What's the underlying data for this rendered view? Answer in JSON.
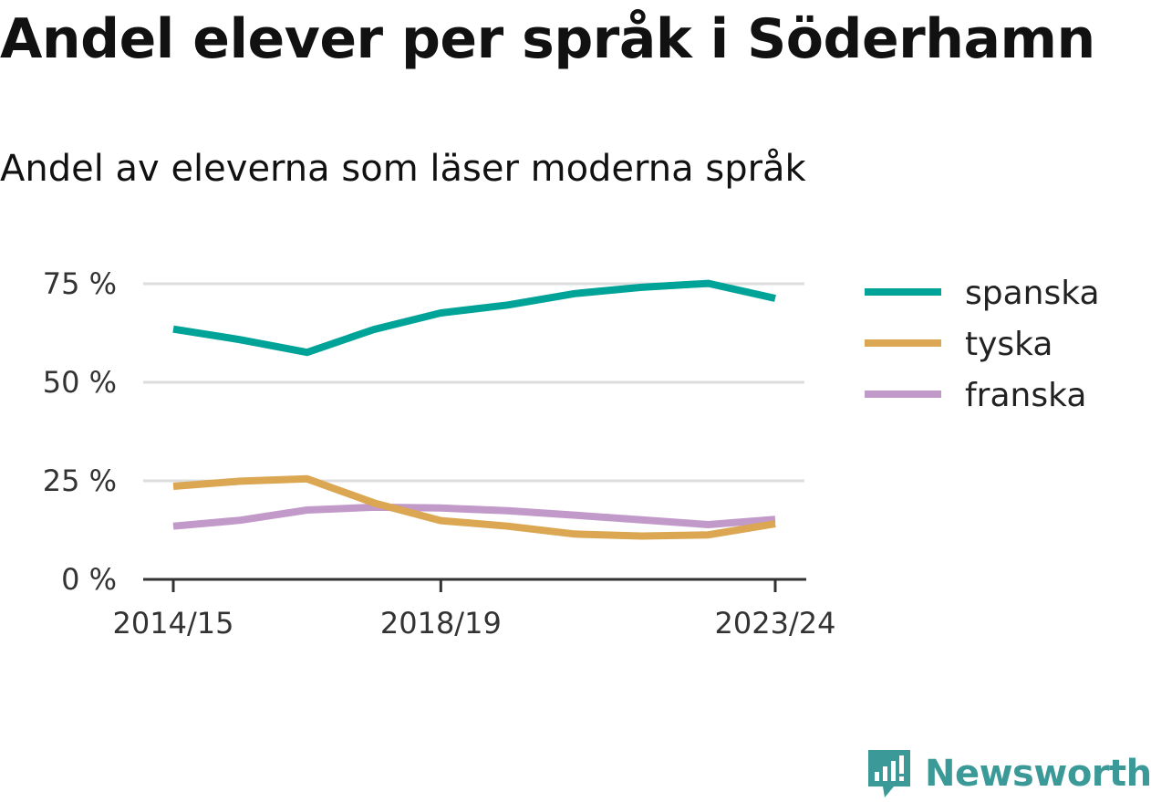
{
  "title": "Andel elever per språk i Söderhamn",
  "subtitle": "Andel av eleverna som läser moderna språk",
  "brand": {
    "name": "Newsworthy",
    "color": "#3b9a98"
  },
  "chart_data": {
    "type": "line",
    "title": "Andel elever per språk i Söderhamn",
    "subtitle": "Andel av eleverna som läser moderna språk",
    "xlabel": "",
    "ylabel": "",
    "x": [
      "2014/15",
      "2015/16",
      "2016/17",
      "2017/18",
      "2018/19",
      "2019/20",
      "2020/21",
      "2021/22",
      "2022/23",
      "2023/24"
    ],
    "x_tick_labels": [
      "2014/15",
      "2018/19",
      "2023/24"
    ],
    "y_ticks": [
      0,
      25,
      50,
      75
    ],
    "y_tick_labels": [
      "0 %",
      "25 %",
      "50 %",
      "75 %"
    ],
    "ylim": [
      0,
      80
    ],
    "grid": true,
    "legend_position": "right",
    "series": [
      {
        "name": "spanska",
        "color": "#00a397",
        "values": [
          63.5,
          60.8,
          57.6,
          63.4,
          67.6,
          69.6,
          72.5,
          74.1,
          75.1,
          71.3
        ]
      },
      {
        "name": "tyska",
        "color": "#dba752",
        "values": [
          23.6,
          24.9,
          25.5,
          19.4,
          14.9,
          13.5,
          11.5,
          11.0,
          11.3,
          14.1
        ]
      },
      {
        "name": "franska",
        "color": "#c29ac9",
        "values": [
          13.5,
          15.0,
          17.6,
          18.3,
          18.1,
          17.4,
          16.3,
          15.1,
          13.9,
          15.2
        ]
      }
    ]
  }
}
